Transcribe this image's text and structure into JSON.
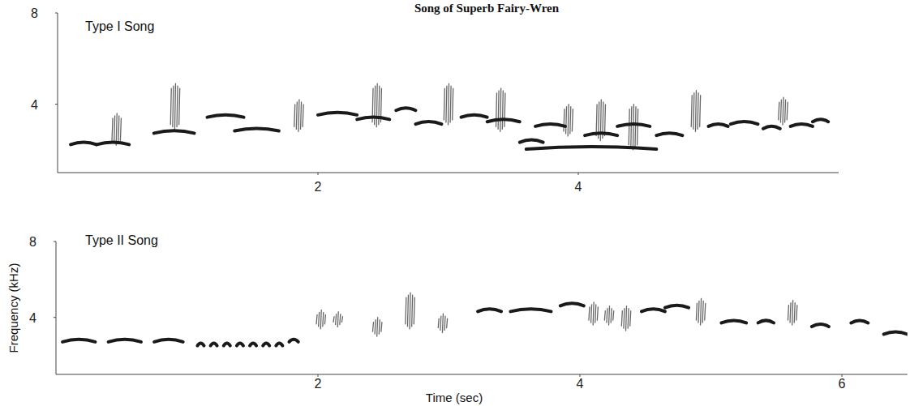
{
  "title": "Song of Superb Fairy-Wren",
  "chart_data": [
    {
      "type": "spectrogram",
      "title": "Type I Song",
      "xlim": [
        0,
        6
      ],
      "xticks": [
        2,
        4
      ],
      "ylim": [
        1,
        8
      ],
      "yticks": [
        4,
        8
      ],
      "tones": {
        "color": "#1a1a1a",
        "x": [
          0.1,
          0.3,
          0.74,
          1.15,
          1.36,
          2.0,
          2.3,
          2.6,
          2.75,
          3.1,
          3.3,
          3.55,
          3.6,
          3.67,
          4.05,
          4.3,
          4.6,
          5.0,
          5.17,
          5.42,
          5.63,
          5.8
        ],
        "x_end": [
          0.3,
          0.55,
          1.05,
          1.43,
          1.7,
          2.3,
          2.55,
          2.75,
          2.95,
          3.3,
          3.55,
          3.73,
          4.6,
          3.9,
          4.3,
          4.55,
          4.8,
          5.15,
          5.38,
          5.55,
          5.8,
          5.92
        ],
        "values": [
          2.3,
          2.3,
          2.8,
          3.5,
          2.9,
          3.6,
          3.4,
          3.8,
          3.2,
          3.5,
          3.3,
          2.4,
          2.1,
          3.1,
          2.7,
          3.1,
          2.7,
          3.1,
          3.2,
          3.0,
          3.1,
          3.3
        ]
      },
      "buzz": {
        "color": "#666666",
        "x": [
          0.45,
          0.9,
          1.85,
          2.45,
          3.0,
          3.4,
          3.92,
          4.17,
          4.42,
          4.9,
          5.57
        ],
        "values": [
          2.2,
          2.9,
          2.8,
          3.0,
          3.1,
          2.8,
          2.6,
          2.4,
          2.0,
          2.8,
          3.1
        ],
        "values_high": [
          3.6,
          4.9,
          4.2,
          4.9,
          4.9,
          4.7,
          4.0,
          4.2,
          4.0,
          4.6,
          4.3
        ]
      }
    },
    {
      "type": "spectrogram",
      "title": "Type II Song",
      "x_label": "Time (sec)",
      "y_label": "Frequency (kHz)",
      "xlim": [
        0,
        6.5
      ],
      "xticks": [
        2,
        4,
        6
      ],
      "ylim": [
        1,
        8
      ],
      "yticks": [
        4,
        8
      ],
      "tones": {
        "color": "#1a1a1a",
        "x": [
          0.05,
          0.4,
          0.75,
          1.08,
          1.18,
          1.28,
          1.38,
          1.48,
          1.58,
          1.68,
          1.78,
          3.22,
          3.47,
          3.85,
          4.47,
          4.65,
          5.08,
          5.36,
          5.77,
          6.07,
          6.32
        ],
        "x_end": [
          0.3,
          0.65,
          0.97,
          1.13,
          1.23,
          1.33,
          1.43,
          1.53,
          1.63,
          1.73,
          1.85,
          3.4,
          3.78,
          4.03,
          4.65,
          4.83,
          5.27,
          5.48,
          5.9,
          6.2,
          6.5
        ],
        "values": [
          2.8,
          2.8,
          2.8,
          2.6,
          2.6,
          2.6,
          2.6,
          2.6,
          2.6,
          2.6,
          2.8,
          4.4,
          4.4,
          4.7,
          4.4,
          4.6,
          3.8,
          3.8,
          3.6,
          3.8,
          3.2
        ]
      },
      "buzz": {
        "color": "#666666",
        "x": [
          2.02,
          2.15,
          2.45,
          2.7,
          2.95,
          4.1,
          4.22,
          4.35,
          4.92,
          5.62
        ],
        "values": [
          3.4,
          3.5,
          3.0,
          3.4,
          3.2,
          3.6,
          3.6,
          3.3,
          3.6,
          3.6
        ],
        "values_high": [
          4.4,
          4.3,
          4.0,
          5.3,
          4.2,
          4.8,
          4.6,
          4.6,
          5.0,
          4.9
        ]
      }
    }
  ]
}
